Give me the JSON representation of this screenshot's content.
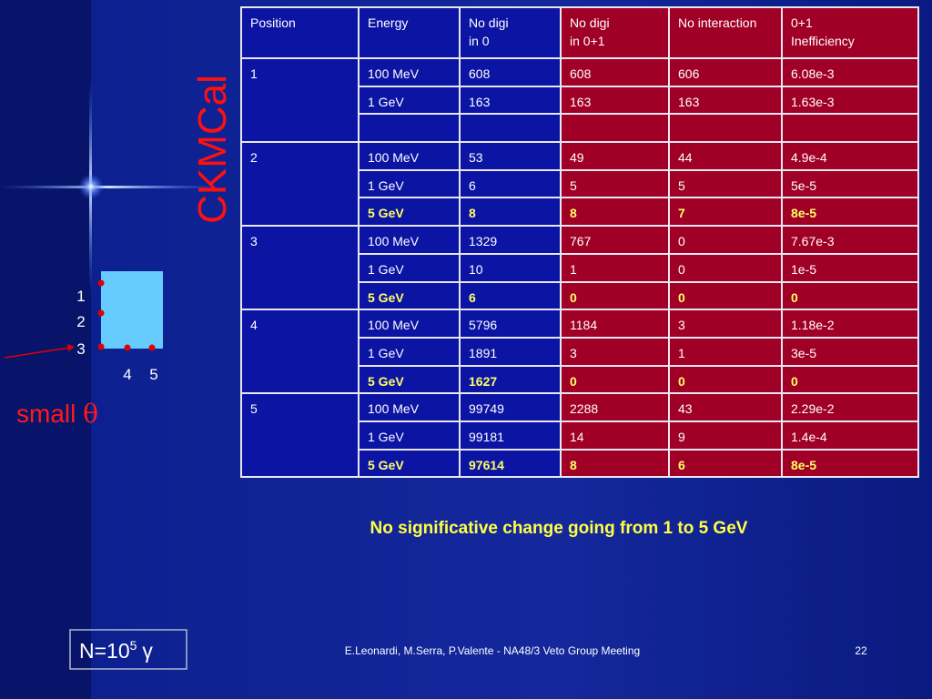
{
  "title": "CKMCal",
  "diagram": {
    "row_labels": [
      "1",
      "2",
      "3"
    ],
    "column_labels": [
      "4",
      "5"
    ]
  },
  "small_angle": {
    "text": "small",
    "symbol": "θ"
  },
  "table": {
    "header": [
      [
        "Position"
      ],
      [
        "Energy"
      ],
      [
        "No digi",
        "in 0"
      ],
      [
        "No digi",
        "in 0+1"
      ],
      [
        "No interaction"
      ],
      [
        "0+1",
        "Inefficiency"
      ]
    ],
    "groups": [
      {
        "position": "1",
        "rows": [
          {
            "cells": [
              "100 MeV",
              "608",
              "608",
              "606",
              "6.08e-3"
            ],
            "bold": false
          },
          {
            "cells": [
              "1 GeV",
              "163",
              "163",
              "163",
              "1.63e-3"
            ],
            "bold": false
          },
          null
        ]
      },
      {
        "position": "2",
        "rows": [
          {
            "cells": [
              "100 MeV",
              "53",
              "49",
              "44",
              "4.9e-4"
            ],
            "bold": false
          },
          {
            "cells": [
              "1 GeV",
              "6",
              "5",
              "5",
              "5e-5"
            ],
            "bold": false
          },
          {
            "cells": [
              "5 GeV",
              "8",
              "8",
              "7",
              "8e-5"
            ],
            "bold": true
          }
        ]
      },
      {
        "position": "3",
        "rows": [
          {
            "cells": [
              "100 MeV",
              "1329",
              "767",
              "0",
              "7.67e-3"
            ],
            "bold": false
          },
          {
            "cells": [
              "1 GeV",
              "10",
              "1",
              "0",
              "1e-5"
            ],
            "bold": false
          },
          {
            "cells": [
              "5 GeV",
              "6",
              "0",
              "0",
              "0"
            ],
            "bold": true
          }
        ]
      },
      {
        "position": "4",
        "rows": [
          {
            "cells": [
              "100 MeV",
              "5796",
              "1184",
              "3",
              "1.18e-2"
            ],
            "bold": false
          },
          {
            "cells": [
              "1 GeV",
              "1891",
              "3",
              "1",
              "3e-5"
            ],
            "bold": false
          },
          {
            "cells": [
              "5 GeV",
              "1627",
              "0",
              "0",
              "0"
            ],
            "bold": true
          }
        ]
      },
      {
        "position": "5",
        "rows": [
          {
            "cells": [
              "100 MeV",
              "99749",
              "2288",
              "43",
              "2.29e-2"
            ],
            "bold": false
          },
          {
            "cells": [
              "1 GeV",
              "99181",
              "14",
              "9",
              "1.4e-4"
            ],
            "bold": false
          },
          {
            "cells": [
              "5 GeV",
              "97614",
              "8",
              "6",
              "8e-5"
            ],
            "bold": true
          }
        ]
      }
    ]
  },
  "caption": "No significative change going from 1 to 5 GeV",
  "statistics": {
    "base": "N=10",
    "exponent": "5",
    "symbol": "γ"
  },
  "footer": {
    "text": "E.Leonardi, M.Serra, P.Valente - NA48/3 Veto Group Meeting",
    "page": "22"
  }
}
